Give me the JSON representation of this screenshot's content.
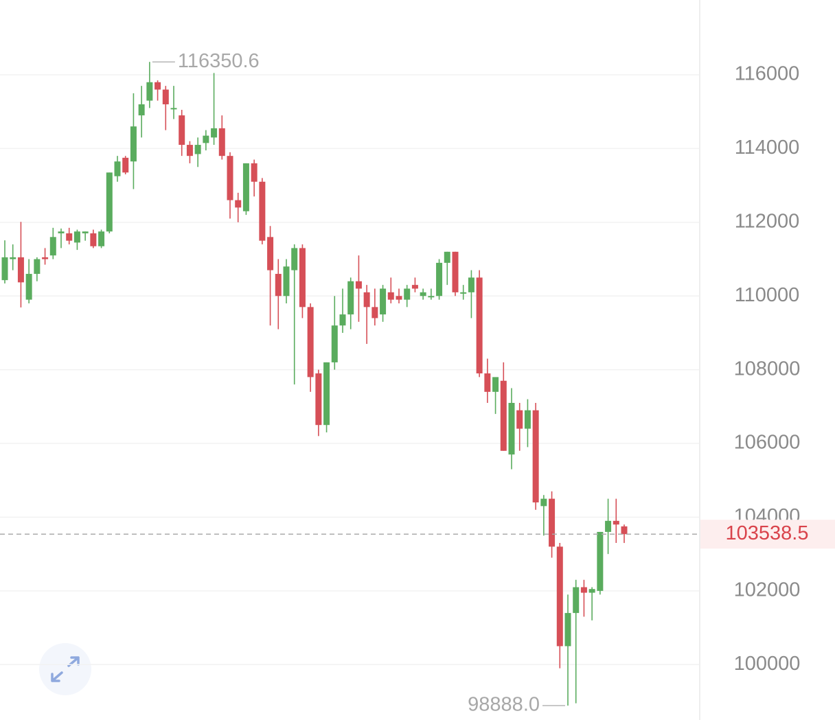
{
  "chart_data": {
    "type": "candlestick",
    "open": [
      110430,
      111000,
      111050,
      109900,
      110600,
      111050,
      111100,
      111700,
      111700,
      111450,
      111700,
      111700,
      111350,
      111750,
      113250,
      113750,
      113650,
      114900,
      115300,
      115800,
      115600,
      115100,
      114900,
      114100,
      113850,
      114150,
      114300,
      114550,
      113800,
      112600,
      112300,
      113600,
      113100,
      111600,
      110600,
      110000,
      110700,
      111300,
      109700,
      107900,
      106500,
      108200,
      109200,
      109500,
      110400,
      110100,
      109700,
      109500,
      110100,
      110000,
      109900,
      110300,
      110000,
      110000,
      110000,
      110900,
      111200,
      110100,
      110100,
      110500,
      107900,
      107400,
      107700,
      105700,
      106900,
      106400,
      106900,
      104300,
      104500,
      103200,
      100500,
      101400,
      102100,
      101950,
      102000,
      103600,
      103900,
      103750
    ],
    "high": [
      111510,
      111400,
      112010,
      111000,
      111050,
      111300,
      111850,
      111830,
      111850,
      111800,
      111750,
      111800,
      111800,
      113350,
      113800,
      113800,
      115500,
      115700,
      116350.6,
      115850,
      115700,
      115700,
      115050,
      114200,
      114300,
      114500,
      116050,
      114900,
      113900,
      112800,
      113600,
      113700,
      113200,
      111900,
      111000,
      111000,
      111400,
      111400,
      109800,
      108000,
      108200,
      110000,
      110200,
      110500,
      111100,
      110300,
      110200,
      110300,
      110500,
      110200,
      110300,
      110500,
      110200,
      110200,
      111000,
      111200,
      111200,
      110300,
      110700,
      110700,
      108300,
      107700,
      108200,
      107500,
      107100,
      107200,
      107100,
      104600,
      104700,
      103300,
      101900,
      102300,
      102300,
      102100,
      103600,
      104500,
      104500,
      103800
    ],
    "low": [
      110340,
      110700,
      109690,
      109800,
      110400,
      110850,
      111000,
      111300,
      111400,
      111250,
      111500,
      111300,
      111300,
      111700,
      113100,
      113300,
      112900,
      114300,
      115100,
      115300,
      114500,
      114800,
      113800,
      113600,
      113500,
      113950,
      114100,
      113700,
      112100,
      112000,
      112200,
      112700,
      111400,
      109200,
      109100,
      109800,
      107600,
      109400,
      107400,
      106200,
      106300,
      108000,
      109000,
      109100,
      109300,
      108700,
      109200,
      109300,
      109800,
      109800,
      109700,
      110100,
      109900,
      109900,
      109900,
      110300,
      110000,
      109900,
      109400,
      107800,
      107100,
      106800,
      105800,
      105300,
      105800,
      105900,
      104200,
      103500,
      102900,
      99900,
      98888,
      98950,
      101300,
      101200,
      101900,
      103000,
      103300,
      103300
    ],
    "close": [
      111050,
      111050,
      110370,
      110600,
      111000,
      111000,
      111600,
      111750,
      111500,
      111750,
      111750,
      111350,
      111750,
      113350,
      113650,
      113350,
      114600,
      115200,
      115800,
      115600,
      115200,
      115100,
      114100,
      113800,
      114100,
      114350,
      114550,
      113800,
      112600,
      112400,
      113600,
      113100,
      111500,
      110700,
      110000,
      110800,
      111300,
      109700,
      107800,
      106500,
      108200,
      109200,
      109500,
      110400,
      110200,
      109700,
      109400,
      110200,
      109900,
      109900,
      110200,
      110200,
      110100,
      110000,
      110900,
      111200,
      110100,
      110100,
      110500,
      107900,
      107400,
      107800,
      105800,
      107100,
      106400,
      106900,
      104400,
      104500,
      103200,
      100500,
      101400,
      102100,
      101950,
      102050,
      103600,
      103900,
      103800,
      103538.5
    ],
    "up_color": "#5aac5e",
    "down_color": "#d64f57",
    "ylim": [
      98497,
      118030
    ],
    "yticks": [
      100000,
      102000,
      104000,
      106000,
      108000,
      110000,
      112000,
      114000,
      116000
    ],
    "grid": true,
    "high_annotation": {
      "value": 116350.6,
      "label": "116350.6"
    },
    "low_annotation": {
      "value": 98888,
      "label": "98888.0"
    },
    "last_price": {
      "value": 103538.5,
      "label": "103538.5"
    }
  }
}
